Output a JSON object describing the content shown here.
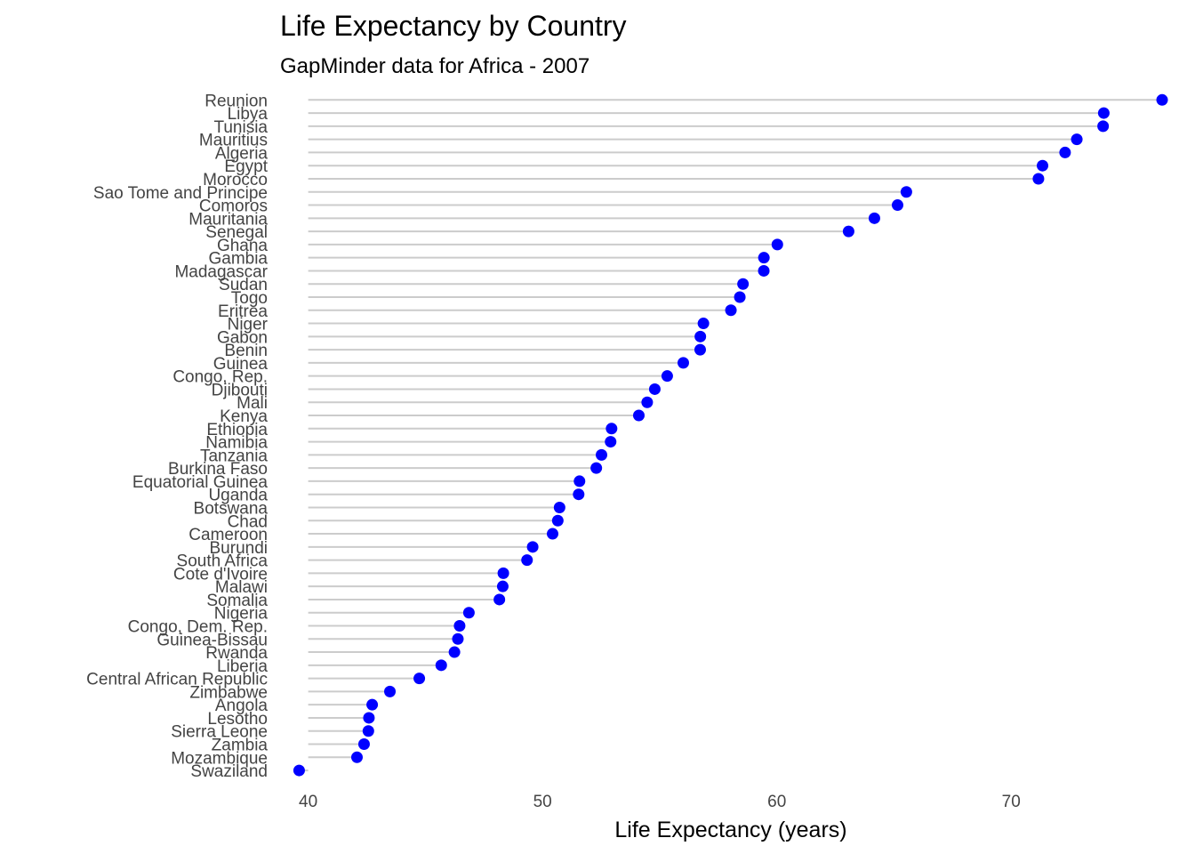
{
  "chart_data": {
    "type": "lollipop",
    "title": "Life Expectancy by Country",
    "subtitle": "GapMinder data for Africa - 2007",
    "xlabel": "Life Expectancy (years)",
    "ylabel": "",
    "xlim": [
      38.8,
      77.2
    ],
    "xticks": [
      40,
      50,
      60,
      70
    ],
    "baseline": 40,
    "grid": false,
    "point_color": "#0000ff",
    "stem_color": "#cccccc",
    "categories": [
      "Reunion",
      "Libya",
      "Tunisia",
      "Mauritius",
      "Algeria",
      "Egypt",
      "Morocco",
      "Sao Tome and Principe",
      "Comoros",
      "Mauritania",
      "Senegal",
      "Ghana",
      "Gambia",
      "Madagascar",
      "Sudan",
      "Togo",
      "Eritrea",
      "Niger",
      "Gabon",
      "Benin",
      "Guinea",
      "Congo, Rep.",
      "Djibouti",
      "Mali",
      "Kenya",
      "Ethiopia",
      "Namibia",
      "Tanzania",
      "Burkina Faso",
      "Equatorial Guinea",
      "Uganda",
      "Botswana",
      "Chad",
      "Cameroon",
      "Burundi",
      "South Africa",
      "Cote d'Ivoire",
      "Malawi",
      "Somalia",
      "Nigeria",
      "Congo, Dem. Rep.",
      "Guinea-Bissau",
      "Rwanda",
      "Liberia",
      "Central African Republic",
      "Zimbabwe",
      "Angola",
      "Lesotho",
      "Sierra Leone",
      "Zambia",
      "Mozambique",
      "Swaziland"
    ],
    "values": [
      76.442,
      73.952,
      73.923,
      72.801,
      72.301,
      71.338,
      71.164,
      65.528,
      65.152,
      64.164,
      63.062,
      60.022,
      59.448,
      59.443,
      58.556,
      58.42,
      58.04,
      56.867,
      56.735,
      56.728,
      56.007,
      55.322,
      54.791,
      54.467,
      54.11,
      52.947,
      52.906,
      52.517,
      52.295,
      51.579,
      51.542,
      50.728,
      50.651,
      50.43,
      49.58,
      49.339,
      48.328,
      48.303,
      48.159,
      46.859,
      46.462,
      46.388,
      46.242,
      45.678,
      44.741,
      43.487,
      42.731,
      42.592,
      42.568,
      42.384,
      42.082,
      39.613
    ]
  }
}
